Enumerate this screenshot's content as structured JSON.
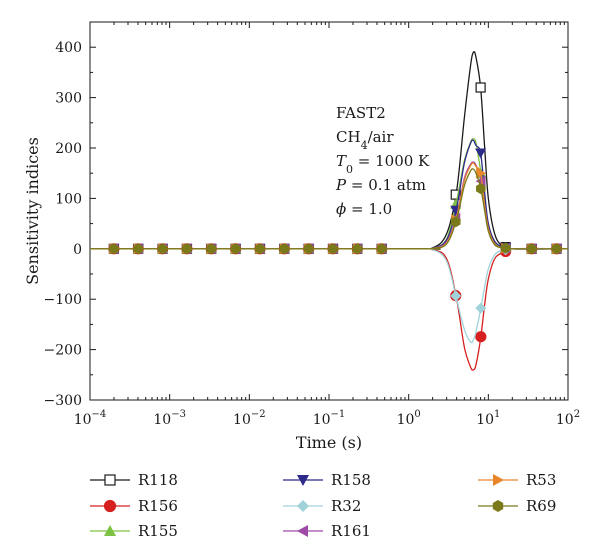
{
  "chart_data": {
    "type": "line",
    "xlabel": "Time (s)",
    "ylabel": "Sensitivity indices",
    "x_scale": "log",
    "xlim": [
      0.0001,
      100
    ],
    "ylim": [
      -300,
      450
    ],
    "x_ticks": [
      0.0001,
      0.001,
      0.01,
      0.1,
      1,
      10,
      100
    ],
    "x_tick_labels": [
      {
        "base": "10",
        "exp": "−4"
      },
      {
        "base": "10",
        "exp": "−3"
      },
      {
        "base": "10",
        "exp": "−2"
      },
      {
        "base": "10",
        "exp": "−1"
      },
      {
        "base": "10",
        "exp": "0"
      },
      {
        "base": "10",
        "exp": "1"
      },
      {
        "base": "10",
        "exp": "2"
      }
    ],
    "y_ticks": [
      -300,
      -200,
      -100,
      0,
      100,
      200,
      300,
      400
    ],
    "y_tick_labels": [
      "−300",
      "−200",
      "−100",
      "0",
      "100",
      "200",
      "300",
      "400"
    ],
    "grid": false,
    "legend_position": "bottom",
    "annotation": {
      "lines": [
        [
          {
            "t": "FAST2"
          }
        ],
        [
          {
            "t": "CH"
          },
          {
            "t": "4",
            "sub": true
          },
          {
            "t": "/air"
          }
        ],
        [
          {
            "t": "T",
            "it": true
          },
          {
            "t": "0",
            "sub": true
          },
          {
            "t": " = 1000 K"
          }
        ],
        [
          {
            "t": "P",
            "it": true
          },
          {
            "t": " = 0.1 atm"
          }
        ],
        [
          {
            "t": "ϕ",
            "it": true
          },
          {
            "t": " = 1.0"
          }
        ]
      ]
    },
    "series": [
      {
        "name": "R118",
        "color": "#1a1a1a",
        "marker": "square-open",
        "x": [
          0.0001,
          1,
          2,
          3,
          4,
          5,
          6,
          6.5,
          7,
          8,
          9,
          10,
          12,
          15,
          20,
          100
        ],
        "y": [
          0,
          0,
          2,
          30,
          115,
          260,
          365,
          390,
          380,
          320,
          200,
          100,
          30,
          5,
          0,
          0
        ]
      },
      {
        "name": "R156",
        "color": "#d62020",
        "marker": "circle",
        "x": [
          0.0001,
          1,
          2,
          3,
          4,
          5,
          6,
          6.5,
          7,
          8,
          9,
          10,
          12,
          15,
          20,
          100
        ],
        "y": [
          0,
          0,
          -2,
          -20,
          -100,
          -195,
          -235,
          -240,
          -230,
          -178,
          -110,
          -60,
          -20,
          -8,
          0,
          0
        ]
      },
      {
        "name": "R155",
        "color": "#7dc242",
        "marker": "triangle-up",
        "x": [
          0.0001,
          1,
          2,
          3,
          4,
          5,
          6,
          6.5,
          7,
          8,
          9,
          10,
          12,
          15,
          20,
          100
        ],
        "y": [
          0,
          0,
          2,
          20,
          95,
          175,
          212,
          218,
          210,
          155,
          95,
          45,
          12,
          3,
          0,
          0
        ]
      },
      {
        "name": "R158",
        "color": "#2e2a8a",
        "marker": "triangle-down",
        "x": [
          0.0001,
          1,
          2,
          3,
          4,
          5,
          6,
          6.5,
          7,
          8,
          9,
          10,
          12,
          15,
          20,
          100
        ],
        "y": [
          0,
          0,
          2,
          18,
          82,
          170,
          210,
          215,
          205,
          190,
          110,
          50,
          15,
          4,
          0,
          0
        ]
      },
      {
        "name": "R32",
        "color": "#9fd3d9",
        "marker": "diamond",
        "x": [
          0.0001,
          1,
          2,
          3,
          4,
          5,
          6,
          6.5,
          7,
          8,
          9,
          10,
          12,
          15,
          20,
          100
        ],
        "y": [
          0,
          0,
          -2,
          -25,
          -100,
          -160,
          -185,
          -180,
          -165,
          -120,
          -75,
          -40,
          -12,
          -3,
          0,
          0
        ]
      },
      {
        "name": "R161",
        "color": "#a04aa8",
        "marker": "triangle-left",
        "x": [
          0.0001,
          1,
          2,
          3,
          4,
          5,
          6,
          6.5,
          7,
          8,
          9,
          10,
          12,
          15,
          20,
          100
        ],
        "y": [
          0,
          0,
          1,
          14,
          65,
          140,
          168,
          172,
          166,
          140,
          85,
          40,
          10,
          2,
          0,
          0
        ]
      },
      {
        "name": "R53",
        "color": "#e8872a",
        "marker": "triangle-right",
        "x": [
          0.0001,
          1,
          2,
          3,
          4,
          5,
          6,
          6.5,
          7,
          8,
          9,
          10,
          12,
          15,
          20,
          100
        ],
        "y": [
          0,
          0,
          1,
          12,
          62,
          135,
          165,
          170,
          163,
          150,
          85,
          40,
          10,
          2,
          0,
          0
        ]
      },
      {
        "name": "R69",
        "color": "#7a7a1a",
        "marker": "hexagon",
        "x": [
          0.0001,
          1,
          2,
          3,
          4,
          5,
          6,
          6.5,
          7,
          8,
          9,
          10,
          12,
          15,
          20,
          100
        ],
        "y": [
          0,
          0,
          1,
          10,
          58,
          125,
          155,
          158,
          150,
          122,
          75,
          35,
          8,
          2,
          0,
          0
        ]
      }
    ]
  }
}
